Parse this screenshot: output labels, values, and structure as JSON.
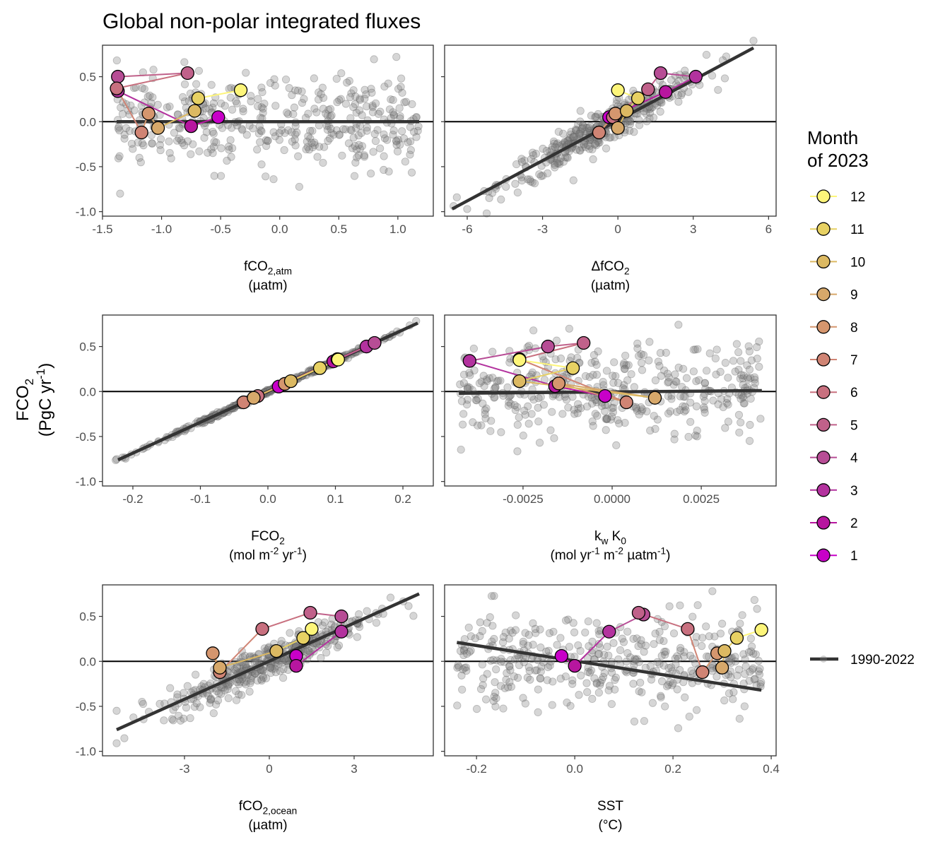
{
  "chart_data": {
    "type": "scatter",
    "title": "Global non-polar integrated fluxes",
    "ylabel": [
      "FCO",
      "2",
      "(PgC yr",
      "-1",
      ")"
    ],
    "ylim": [
      -1.05,
      0.85
    ],
    "yticks": [
      0.5,
      0.0,
      -0.5,
      -1.0
    ],
    "ytick_labels": [
      "0.5",
      "0.0",
      "-0.5",
      "-1.0"
    ],
    "month_colors": {
      "1": "#c800c8",
      "2": "#b7169f",
      "3": "#b3329e",
      "4": "#b74d95",
      "5": "#c0618a",
      "6": "#c8707f",
      "7": "#d08474",
      "8": "#d5966e",
      "9": "#d7a86a",
      "10": "#dcb962",
      "11": "#e7d163",
      "12": "#fdf57a"
    },
    "legend": {
      "title_line1": "Month",
      "title_line2": "of 2023",
      "months": [
        "12",
        "11",
        "10",
        "9",
        "8",
        "7",
        "6",
        "5",
        "4",
        "3",
        "2",
        "1"
      ],
      "trend_label": "1990-2022"
    },
    "panels": [
      {
        "id": "fco2-atm",
        "xlabel": [
          [
            "fCO",
            ""
          ],
          [
            "2,atm",
            "sub"
          ]
        ],
        "xunit": [
          [
            "(µatm)",
            ""
          ]
        ],
        "xlim": [
          -1.5,
          1.3
        ],
        "xticks": [
          -1.5,
          -1.0,
          -0.5,
          0.0,
          0.5,
          1.0
        ],
        "xtick_labels": [
          "-1.5",
          "-1.0",
          "-0.5",
          "0.0",
          "0.5",
          "1.0"
        ],
        "trend": [
          [
            -1.38,
            0.0
          ],
          [
            1.18,
            0.0
          ]
        ],
        "cloud_shape": "uniform",
        "months_2023": [
          {
            "month": 1,
            "x": -0.52,
            "y": 0.05
          },
          {
            "month": 2,
            "x": -0.75,
            "y": -0.05
          },
          {
            "month": 3,
            "x": -1.37,
            "y": 0.34
          },
          {
            "month": 4,
            "x": -1.37,
            "y": 0.5
          },
          {
            "month": 5,
            "x": -0.78,
            "y": 0.54
          },
          {
            "month": 6,
            "x": -1.38,
            "y": 0.37
          },
          {
            "month": 7,
            "x": -1.17,
            "y": -0.12
          },
          {
            "month": 8,
            "x": -1.11,
            "y": 0.09
          },
          {
            "month": 9,
            "x": -1.03,
            "y": -0.07
          },
          {
            "month": 10,
            "x": -0.72,
            "y": 0.12
          },
          {
            "month": 11,
            "x": -0.69,
            "y": 0.26
          },
          {
            "month": 12,
            "x": -0.33,
            "y": 0.35
          }
        ]
      },
      {
        "id": "delta-fco2",
        "xlabel": [
          [
            "ΔfCO",
            ""
          ],
          [
            "2",
            "sub"
          ]
        ],
        "xunit": [
          [
            "(µatm)",
            ""
          ]
        ],
        "xlim": [
          -6.9,
          6.3
        ],
        "xticks": [
          -6,
          -3,
          0,
          3,
          6
        ],
        "xtick_labels": [
          "-6",
          "-3",
          "0",
          "3",
          "6"
        ],
        "trend": [
          [
            -6.6,
            -0.97
          ],
          [
            5.4,
            0.82
          ]
        ],
        "cloud_shape": "linear",
        "months_2023": [
          {
            "month": 1,
            "x": -0.35,
            "y": 0.05
          },
          {
            "month": 2,
            "x": 1.9,
            "y": 0.33
          },
          {
            "month": 3,
            "x": 3.1,
            "y": 0.5
          },
          {
            "month": 4,
            "x": 1.7,
            "y": 0.54
          },
          {
            "month": 5,
            "x": 1.2,
            "y": 0.36
          },
          {
            "month": 6,
            "x": -0.2,
            "y": 0.05
          },
          {
            "month": 7,
            "x": -0.75,
            "y": -0.12
          },
          {
            "month": 8,
            "x": -0.1,
            "y": 0.09
          },
          {
            "month": 9,
            "x": 0.0,
            "y": -0.07
          },
          {
            "month": 10,
            "x": 0.35,
            "y": 0.12
          },
          {
            "month": 11,
            "x": 0.8,
            "y": 0.26
          },
          {
            "month": 12,
            "x": 0.0,
            "y": 0.35
          }
        ]
      },
      {
        "id": "fco2-flux",
        "xlabel": [
          [
            "FCO",
            ""
          ],
          [
            "2",
            "sub"
          ]
        ],
        "xunit": [
          [
            "(mol m",
            ""
          ],
          [
            "-2",
            "sup"
          ],
          [
            " yr",
            ""
          ],
          [
            "-1",
            "sup"
          ],
          [
            ")",
            ""
          ]
        ],
        "xlim": [
          -0.245,
          0.245
        ],
        "xticks": [
          -0.2,
          -0.1,
          0.0,
          0.1,
          0.2
        ],
        "xtick_labels": [
          "-0.2",
          "-0.1",
          "0.0",
          "0.1",
          "0.2"
        ],
        "trend": [
          [
            -0.222,
            -0.76
          ],
          [
            0.222,
            0.76
          ]
        ],
        "cloud_shape": "identity",
        "months_2023": [
          {
            "month": 1,
            "x": 0.016,
            "y": 0.055
          },
          {
            "month": 2,
            "x": 0.097,
            "y": 0.335
          },
          {
            "month": 3,
            "x": 0.146,
            "y": 0.5
          },
          {
            "month": 4,
            "x": 0.158,
            "y": 0.54
          },
          {
            "month": 5,
            "x": 0.103,
            "y": 0.36
          },
          {
            "month": 6,
            "x": -0.015,
            "y": -0.05
          },
          {
            "month": 7,
            "x": -0.036,
            "y": -0.12
          },
          {
            "month": 8,
            "x": 0.025,
            "y": 0.085
          },
          {
            "month": 9,
            "x": -0.021,
            "y": -0.07
          },
          {
            "month": 10,
            "x": 0.034,
            "y": 0.115
          },
          {
            "month": 11,
            "x": 0.077,
            "y": 0.26
          },
          {
            "month": 12,
            "x": 0.104,
            "y": 0.355
          }
        ]
      },
      {
        "id": "kw-k0",
        "xlabel": [
          [
            "k",
            ""
          ],
          [
            "w",
            "sub"
          ],
          [
            " K",
            ""
          ],
          [
            "0",
            "sub"
          ]
        ],
        "xunit": [
          [
            "(mol yr",
            ""
          ],
          [
            "-1",
            "sup"
          ],
          [
            " m",
            ""
          ],
          [
            "-2",
            "sup"
          ],
          [
            " µatm",
            ""
          ],
          [
            "-1",
            "sup"
          ],
          [
            ")",
            ""
          ]
        ],
        "xlim": [
          -0.0047,
          0.0046
        ],
        "xticks": [
          -0.0025,
          0.0,
          0.0025
        ],
        "xtick_labels": [
          "-0.0025",
          "0.0000",
          "0.0025"
        ],
        "trend": [
          [
            -0.0043,
            -0.02
          ],
          [
            0.0042,
            0.01
          ]
        ],
        "cloud_shape": "uniform",
        "months_2023": [
          {
            "month": 1,
            "x": -0.0002,
            "y": -0.05
          },
          {
            "month": 2,
            "x": -0.0016,
            "y": 0.06
          },
          {
            "month": 3,
            "x": -0.004,
            "y": 0.34
          },
          {
            "month": 4,
            "x": -0.0018,
            "y": 0.5
          },
          {
            "month": 5,
            "x": -0.0008,
            "y": 0.54
          },
          {
            "month": 6,
            "x": -0.0026,
            "y": 0.36
          },
          {
            "month": 7,
            "x": 0.0004,
            "y": -0.12
          },
          {
            "month": 8,
            "x": -0.0015,
            "y": 0.09
          },
          {
            "month": 9,
            "x": 0.0012,
            "y": -0.07
          },
          {
            "month": 10,
            "x": -0.0026,
            "y": 0.115
          },
          {
            "month": 11,
            "x": -0.0011,
            "y": 0.26
          },
          {
            "month": 12,
            "x": -0.0026,
            "y": 0.35
          }
        ]
      },
      {
        "id": "fco2-ocean",
        "xlabel": [
          [
            "fCO",
            ""
          ],
          [
            "2,ocean",
            "sub"
          ]
        ],
        "xunit": [
          [
            "(µatm)",
            ""
          ]
        ],
        "xlim": [
          -5.9,
          5.8
        ],
        "xticks": [
          -3,
          0,
          3
        ],
        "xtick_labels": [
          "-3",
          "0",
          "3"
        ],
        "trend": [
          [
            -5.4,
            -0.76
          ],
          [
            5.3,
            0.75
          ]
        ],
        "cloud_shape": "linear",
        "months_2023": [
          {
            "month": 1,
            "x": 0.95,
            "y": 0.06
          },
          {
            "month": 2,
            "x": 0.95,
            "y": -0.05
          },
          {
            "month": 3,
            "x": 2.55,
            "y": 0.33
          },
          {
            "month": 4,
            "x": 2.55,
            "y": 0.5
          },
          {
            "month": 5,
            "x": 1.45,
            "y": 0.54
          },
          {
            "month": 6,
            "x": -0.25,
            "y": 0.36
          },
          {
            "month": 7,
            "x": -1.75,
            "y": -0.12
          },
          {
            "month": 8,
            "x": -2.0,
            "y": 0.09
          },
          {
            "month": 9,
            "x": -1.75,
            "y": -0.07
          },
          {
            "month": 10,
            "x": 0.25,
            "y": 0.115
          },
          {
            "month": 11,
            "x": 1.2,
            "y": 0.26
          },
          {
            "month": 12,
            "x": 1.5,
            "y": 0.36
          }
        ]
      },
      {
        "id": "sst",
        "xlabel": [
          [
            "SST",
            ""
          ]
        ],
        "xunit": [
          [
            "(°C)",
            ""
          ]
        ],
        "xlim": [
          -0.265,
          0.41
        ],
        "xticks": [
          -0.2,
          0.0,
          0.2,
          0.4
        ],
        "xtick_labels": [
          "-0.2",
          "0.0",
          "0.2",
          "0.4"
        ],
        "trend": [
          [
            -0.24,
            0.21
          ],
          [
            0.38,
            -0.32
          ]
        ],
        "cloud_shape": "uniform",
        "months_2023": [
          {
            "month": 1,
            "x": -0.027,
            "y": 0.06
          },
          {
            "month": 2,
            "x": 0.0,
            "y": -0.05
          },
          {
            "month": 3,
            "x": 0.07,
            "y": 0.33
          },
          {
            "month": 4,
            "x": 0.14,
            "y": 0.52
          },
          {
            "month": 5,
            "x": 0.13,
            "y": 0.54
          },
          {
            "month": 6,
            "x": 0.23,
            "y": 0.36
          },
          {
            "month": 7,
            "x": 0.26,
            "y": -0.12
          },
          {
            "month": 8,
            "x": 0.29,
            "y": 0.09
          },
          {
            "month": 9,
            "x": 0.3,
            "y": -0.07
          },
          {
            "month": 10,
            "x": 0.305,
            "y": 0.115
          },
          {
            "month": 11,
            "x": 0.33,
            "y": 0.26
          },
          {
            "month": 12,
            "x": 0.38,
            "y": 0.35
          }
        ]
      }
    ]
  }
}
